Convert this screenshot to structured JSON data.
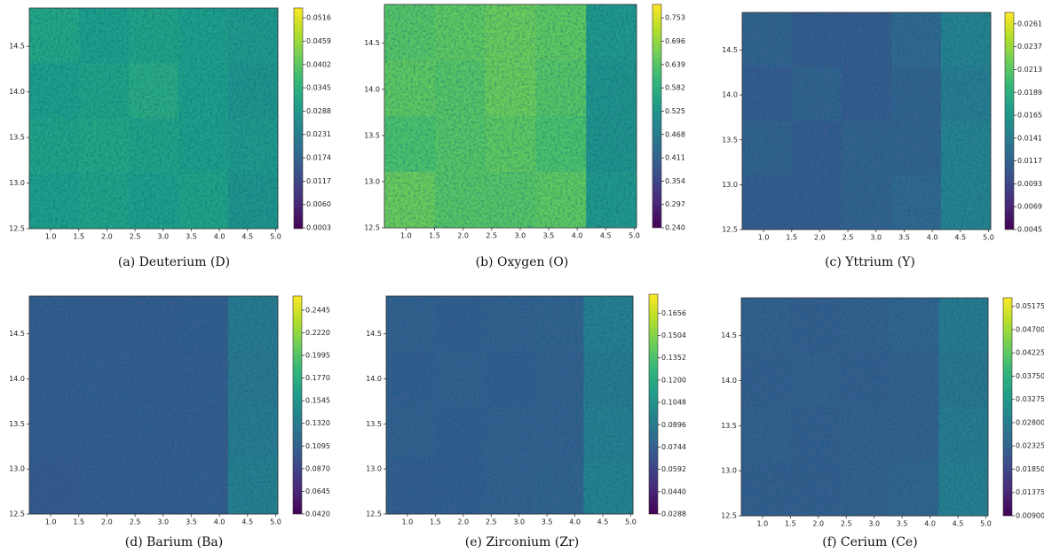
{
  "chart_data": [
    {
      "type": "heatmap",
      "caption": "(a) Deuterium (D)",
      "colormap": "viridis",
      "xlim": [
        0.62,
        5.04
      ],
      "ylim": [
        12.5,
        14.92
      ],
      "zlim": [
        0.0001,
        0.054
      ],
      "xticks": [
        {
          "value": 1.0,
          "label": "1.0"
        },
        1.5,
        {
          "value": 2.0,
          "label": "2.0"
        },
        2.5,
        {
          "value": 3.0,
          "label": "3.0"
        },
        3.5,
        {
          "value": 4.0,
          "label": "4.0"
        },
        4.5,
        {
          "value": 5.0,
          "label": "5.0"
        }
      ],
      "yticks": [
        12.5,
        {
          "value": 13.0,
          "label": "13.0"
        },
        13.5,
        {
          "value": 14.0,
          "label": "14.0"
        },
        14.5
      ],
      "cticks": [
        0.0516,
        0.0459,
        0.0402,
        0.0345,
        0.0288,
        0.0231,
        0.0174,
        0.0117,
        {
          "value": 0.006,
          "label": "0.0060"
        },
        0.0003
      ],
      "z": [
        [
          0.032,
          0.03,
          0.031,
          0.03,
          0.029
        ],
        [
          0.03,
          0.031,
          0.033,
          0.03,
          0.028
        ],
        [
          0.031,
          0.032,
          0.031,
          0.03,
          0.029
        ],
        [
          0.03,
          0.031,
          0.03,
          0.031,
          0.028
        ]
      ]
    },
    {
      "type": "heatmap",
      "caption": "(b) Oxygen (O)",
      "colormap": "viridis",
      "xlim": [
        0.62,
        5.04
      ],
      "ylim": [
        12.5,
        14.92
      ],
      "zlim": [
        0.24,
        0.786
      ],
      "xticks": [
        {
          "value": 1.0,
          "label": "1.0"
        },
        1.5,
        {
          "value": 2.0,
          "label": "2.0"
        },
        2.5,
        {
          "value": 3.0,
          "label": "3.0"
        },
        3.5,
        {
          "value": 4.0,
          "label": "4.0"
        },
        4.5,
        {
          "value": 5.0,
          "label": "5.0"
        }
      ],
      "yticks": [
        12.5,
        {
          "value": 13.0,
          "label": "13.0"
        },
        13.5,
        {
          "value": 14.0,
          "label": "14.0"
        },
        14.5
      ],
      "cticks": [
        0.753,
        0.696,
        0.639,
        0.582,
        0.525,
        0.468,
        0.411,
        0.354,
        0.297,
        {
          "value": 0.24,
          "label": "0.240"
        }
      ],
      "z": [
        [
          0.64,
          0.65,
          0.66,
          0.65,
          0.53
        ],
        [
          0.65,
          0.64,
          0.66,
          0.64,
          0.52
        ],
        [
          0.63,
          0.64,
          0.65,
          0.63,
          0.52
        ],
        [
          0.66,
          0.64,
          0.64,
          0.65,
          0.53
        ]
      ]
    },
    {
      "type": "heatmap",
      "caption": "(c) Yttrium (Y)",
      "colormap": "viridis",
      "xlim": [
        0.62,
        5.04
      ],
      "ylim": [
        12.5,
        14.92
      ],
      "zlim": [
        0.0045,
        0.0273
      ],
      "xticks": [
        {
          "value": 1.0,
          "label": "1.0"
        },
        1.5,
        {
          "value": 2.0,
          "label": "2.0"
        },
        2.5,
        {
          "value": 3.0,
          "label": "3.0"
        },
        3.5,
        {
          "value": 4.0,
          "label": "4.0"
        },
        4.5,
        {
          "value": 5.0,
          "label": "5.0"
        }
      ],
      "yticks": [
        12.5,
        {
          "value": 13.0,
          "label": "13.0"
        },
        13.5,
        {
          "value": 14.0,
          "label": "14.0"
        },
        14.5
      ],
      "cticks": [
        0.0261,
        0.0237,
        0.0213,
        0.0189,
        0.0165,
        0.0141,
        0.0117,
        0.0093,
        0.0069,
        0.0045
      ],
      "z": [
        [
          0.0115,
          0.011,
          0.011,
          0.012,
          0.0145
        ],
        [
          0.011,
          0.0115,
          0.011,
          0.0115,
          0.014
        ],
        [
          0.0115,
          0.011,
          0.0115,
          0.0115,
          0.0145
        ],
        [
          0.011,
          0.011,
          0.0115,
          0.012,
          0.0145
        ]
      ]
    },
    {
      "type": "heatmap",
      "caption": "(d) Barium (Ba)",
      "colormap": "viridis",
      "xlim": [
        0.62,
        5.04
      ],
      "ylim": [
        12.5,
        14.92
      ],
      "zlim": [
        0.042,
        0.2585
      ],
      "xticks": [
        {
          "value": 1.0,
          "label": "1.0"
        },
        1.5,
        {
          "value": 2.0,
          "label": "2.0"
        },
        2.5,
        {
          "value": 3.0,
          "label": "3.0"
        },
        3.5,
        {
          "value": 4.0,
          "label": "4.0"
        },
        4.5,
        {
          "value": 5.0,
          "label": "5.0"
        }
      ],
      "yticks": [
        12.5,
        {
          "value": 13.0,
          "label": "13.0"
        },
        13.5,
        {
          "value": 14.0,
          "label": "14.0"
        },
        14.5
      ],
      "cticks": [
        0.2445,
        {
          "value": 0.222,
          "label": "0.2220"
        },
        0.1995,
        {
          "value": 0.177,
          "label": "0.1770"
        },
        0.1545,
        {
          "value": 0.132,
          "label": "0.1320"
        },
        0.1095,
        {
          "value": 0.087,
          "label": "0.0870"
        },
        0.0645,
        {
          "value": 0.042,
          "label": "0.0420"
        }
      ],
      "z": [
        [
          0.105,
          0.103,
          0.104,
          0.106,
          0.13
        ],
        [
          0.104,
          0.105,
          0.103,
          0.105,
          0.128
        ],
        [
          0.103,
          0.104,
          0.105,
          0.104,
          0.132
        ],
        [
          0.102,
          0.103,
          0.104,
          0.105,
          0.135
        ]
      ]
    },
    {
      "type": "heatmap",
      "caption": "(e) Zirconium (Zr)",
      "colormap": "viridis",
      "xlim": [
        0.62,
        5.04
      ],
      "ylim": [
        12.5,
        14.92
      ],
      "zlim": [
        0.0288,
        0.1785
      ],
      "xticks": [
        {
          "value": 1.0,
          "label": "1.0"
        },
        1.5,
        {
          "value": 2.0,
          "label": "2.0"
        },
        2.5,
        {
          "value": 3.0,
          "label": "3.0"
        },
        3.5,
        {
          "value": 4.0,
          "label": "4.0"
        },
        4.5,
        {
          "value": 5.0,
          "label": "5.0"
        }
      ],
      "yticks": [
        12.5,
        {
          "value": 13.0,
          "label": "13.0"
        },
        13.5,
        {
          "value": 14.0,
          "label": "14.0"
        },
        14.5
      ],
      "cticks": [
        0.1656,
        0.1504,
        0.1352,
        {
          "value": 0.12,
          "label": "0.1200"
        },
        0.1048,
        0.0896,
        0.0744,
        0.0592,
        {
          "value": 0.044,
          "label": "0.0440"
        },
        0.0288
      ],
      "z": [
        [
          0.074,
          0.073,
          0.074,
          0.075,
          0.092
        ],
        [
          0.073,
          0.074,
          0.073,
          0.074,
          0.09
        ],
        [
          0.074,
          0.073,
          0.074,
          0.074,
          0.093
        ],
        [
          0.072,
          0.073,
          0.074,
          0.075,
          0.095
        ]
      ]
    },
    {
      "type": "heatmap",
      "caption": "(f) Cerium (Ce)",
      "colormap": "viridis",
      "xlim": [
        0.62,
        5.04
      ],
      "ylim": [
        12.5,
        14.92
      ],
      "zlim": [
        0.009,
        0.0535
      ],
      "xticks": [
        {
          "value": 1.0,
          "label": "1.0"
        },
        1.5,
        {
          "value": 2.0,
          "label": "2.0"
        },
        2.5,
        {
          "value": 3.0,
          "label": "3.0"
        },
        3.5,
        {
          "value": 4.0,
          "label": "4.0"
        },
        4.5,
        {
          "value": 5.0,
          "label": "5.0"
        }
      ],
      "yticks": [
        12.5,
        {
          "value": 13.0,
          "label": "13.0"
        },
        13.5,
        {
          "value": 14.0,
          "label": "14.0"
        },
        14.5
      ],
      "cticks": [
        0.05175,
        {
          "value": 0.047,
          "label": "0.04700"
        },
        0.04225,
        {
          "value": 0.0375,
          "label": "0.03750"
        },
        0.03275,
        {
          "value": 0.028,
          "label": "0.02800"
        },
        0.02325,
        {
          "value": 0.0185,
          "label": "0.01850"
        },
        0.01375,
        {
          "value": 0.009,
          "label": "0.00900"
        }
      ],
      "z": [
        [
          0.0225,
          0.022,
          0.0225,
          0.023,
          0.027
        ],
        [
          0.022,
          0.0225,
          0.022,
          0.0225,
          0.0265
        ],
        [
          0.0225,
          0.022,
          0.0225,
          0.0225,
          0.0275
        ],
        [
          0.022,
          0.022,
          0.0225,
          0.023,
          0.028
        ]
      ]
    }
  ]
}
